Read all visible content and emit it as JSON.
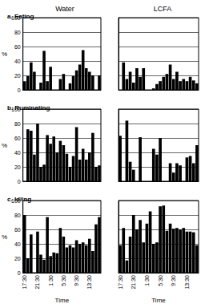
{
  "chart_data": [
    {
      "type": "bar",
      "title": "Water",
      "subtitle": "a. Eating",
      "ylabel": "%",
      "categories": [
        "17:30",
        null,
        null,
        null,
        "21:30",
        null,
        null,
        null,
        "1:30",
        null,
        null,
        null,
        "5:30",
        null,
        null,
        null,
        "9:30",
        null,
        null,
        null,
        "13:30",
        null,
        null,
        null
      ],
      "values": [
        12,
        19,
        38,
        25,
        0,
        10,
        54,
        12,
        32,
        0,
        0,
        15,
        22,
        0,
        9,
        19,
        27,
        35,
        55,
        30,
        25,
        20,
        0,
        20
      ],
      "color": "#000000",
      "ylim": [
        0,
        100
      ],
      "yticks": [
        0,
        20,
        40,
        60,
        80,
        100
      ],
      "grid": true,
      "tick_labels": "y"
    },
    {
      "type": "bar",
      "title": "LCFA",
      "categories": [
        "17:30",
        null,
        null,
        null,
        "21:30",
        null,
        null,
        null,
        "1:30",
        null,
        null,
        null,
        "5:30",
        null,
        null,
        null,
        "9:30",
        null,
        null,
        null,
        "13:30",
        null,
        null,
        null
      ],
      "values": [
        0,
        38,
        15,
        25,
        10,
        30,
        18,
        30,
        0,
        0,
        2,
        8,
        12,
        18,
        22,
        35,
        15,
        25,
        12,
        15,
        12,
        18,
        13,
        9
      ],
      "color": "#000000",
      "ylim": [
        0,
        100
      ],
      "yticks": [
        0,
        20,
        40,
        60,
        80,
        100
      ],
      "grid": true,
      "tick_labels": false
    },
    {
      "type": "bar",
      "subtitle": "b. Ruminating",
      "ylabel": "%",
      "categories": [
        "17:30",
        null,
        null,
        null,
        "21:30",
        null,
        null,
        null,
        "1:30",
        null,
        null,
        null,
        "5:30",
        null,
        null,
        null,
        "9:30",
        null,
        null,
        null,
        "13:30",
        null,
        null,
        null
      ],
      "values": [
        0,
        72,
        70,
        37,
        80,
        20,
        23,
        64,
        52,
        62,
        40,
        56,
        50,
        38,
        20,
        35,
        75,
        30,
        45,
        30,
        40,
        67,
        20,
        22
      ],
      "color": "#000000",
      "ylim": [
        0,
        100
      ],
      "yticks": [
        0,
        20,
        40,
        60,
        80,
        100
      ],
      "grid": true,
      "tick_labels": "y"
    },
    {
      "type": "bar",
      "categories": [
        "17:30",
        null,
        null,
        null,
        "21:30",
        null,
        null,
        null,
        "1:30",
        null,
        null,
        null,
        "5:30",
        null,
        null,
        null,
        "9:30",
        null,
        null,
        null,
        "13:30",
        null,
        null,
        null
      ],
      "values": [
        63,
        0,
        84,
        27,
        16,
        0,
        61,
        0,
        0,
        0,
        45,
        37,
        60,
        0,
        0,
        25,
        12,
        25,
        22,
        0,
        33,
        35,
        25,
        50
      ],
      "color": "#000000",
      "ylim": [
        0,
        100
      ],
      "yticks": [
        0,
        20,
        40,
        60,
        80,
        100
      ],
      "grid": true,
      "tick_labels": false
    },
    {
      "type": "bar",
      "subtitle": "c. Idling",
      "ylabel": "%",
      "xlabel": "Time",
      "categories": [
        "17:30",
        null,
        null,
        null,
        "21:30",
        null,
        null,
        null,
        "1:30",
        null,
        null,
        null,
        "5:30",
        null,
        null,
        null,
        "9:30",
        null,
        null,
        null,
        "13:30",
        null,
        null,
        null
      ],
      "values": [
        80,
        20,
        53,
        0,
        57,
        25,
        18,
        77,
        23,
        28,
        27,
        62,
        50,
        35,
        38,
        35,
        45,
        40,
        42,
        38,
        47,
        30,
        67,
        77
      ],
      "color": "#000000",
      "ylim": [
        0,
        100
      ],
      "yticks": [
        0,
        20,
        40,
        60,
        80,
        100
      ],
      "grid": true,
      "tick_labels": true
    },
    {
      "type": "bar",
      "xlabel": "Time",
      "categories": [
        "17:30",
        null,
        null,
        null,
        "21:30",
        null,
        null,
        null,
        "1:30",
        null,
        null,
        null,
        "5:30",
        null,
        null,
        null,
        "9:30",
        null,
        null,
        null,
        "13:30",
        null,
        null,
        null
      ],
      "values": [
        38,
        62,
        17,
        50,
        80,
        60,
        73,
        42,
        68,
        85,
        40,
        42,
        92,
        93,
        58,
        68,
        61,
        62,
        60,
        62,
        57,
        57,
        56,
        38
      ],
      "color": "#000000",
      "ylim": [
        0,
        100
      ],
      "yticks": [
        0,
        20,
        40,
        60,
        80,
        100
      ],
      "grid": true,
      "tick_labels": "x"
    }
  ]
}
